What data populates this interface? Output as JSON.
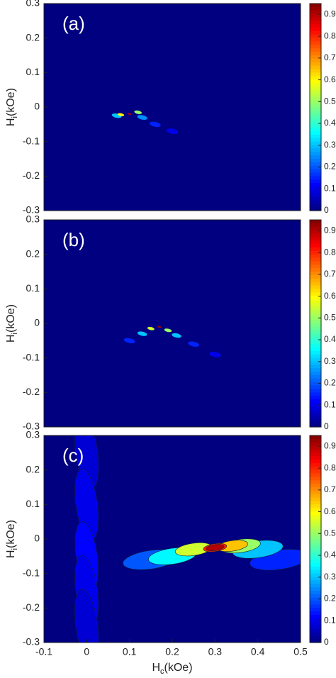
{
  "chart_data": [
    {
      "type": "heatmap",
      "label": "(a)",
      "colormap": "jet",
      "x": [
        0.2,
        0.16,
        0.13,
        0.07,
        0.12,
        0.08,
        0.1
      ],
      "y": [
        -0.07,
        -0.05,
        -0.03,
        -0.025,
        -0.015,
        -0.022,
        -0.02
      ],
      "values": [
        0.1,
        0.15,
        0.25,
        0.3,
        0.5,
        0.6,
        0.9
      ],
      "xlim": [
        -0.1,
        0.5
      ],
      "ylim": [
        -0.3,
        0.3
      ],
      "yticks": [
        0.3,
        0.2,
        0.1,
        0,
        -0.1,
        -0.2,
        -0.3
      ],
      "y_label": [
        "H",
        "i",
        "(kOe)"
      ],
      "clim": [
        0,
        0.95
      ],
      "cticks": [
        0,
        0.1,
        0.2,
        0.3,
        0.4,
        0.5,
        0.6,
        0.7,
        0.8,
        0.9
      ]
    },
    {
      "type": "heatmap",
      "label": "(b)",
      "colormap": "jet",
      "x": [
        0.3,
        0.1,
        0.25,
        0.13,
        0.21,
        0.15,
        0.19,
        0.17
      ],
      "y": [
        -0.09,
        -0.05,
        -0.06,
        -0.03,
        -0.035,
        -0.015,
        -0.02,
        -0.01
      ],
      "values": [
        0.1,
        0.15,
        0.15,
        0.3,
        0.3,
        0.55,
        0.5,
        0.9
      ],
      "xlim": [
        -0.1,
        0.5
      ],
      "ylim": [
        -0.3,
        0.3
      ],
      "yticks": [
        0.3,
        0.2,
        0.1,
        0,
        -0.1,
        -0.2,
        -0.3
      ],
      "y_label": [
        "H",
        "i",
        "(kOe)"
      ],
      "clim": [
        0,
        0.95
      ],
      "cticks": [
        0,
        0.1,
        0.2,
        0.3,
        0.4,
        0.5,
        0.6,
        0.7,
        0.8,
        0.9
      ]
    },
    {
      "type": "heatmap",
      "label": "(c)",
      "colormap": "jet",
      "x": [
        0.0,
        0.0,
        0.0,
        0.0,
        0.0,
        0.45,
        0.15,
        0.4,
        0.2,
        0.36,
        0.25,
        0.34,
        0.3,
        0.3
      ],
      "y": [
        0.25,
        0.1,
        -0.05,
        -0.15,
        -0.25,
        -0.06,
        -0.06,
        -0.03,
        -0.05,
        -0.02,
        -0.03,
        -0.02,
        -0.025,
        -0.025
      ],
      "values": [
        0.08,
        0.1,
        0.12,
        0.1,
        0.08,
        0.15,
        0.2,
        0.3,
        0.35,
        0.5,
        0.55,
        0.65,
        0.8,
        0.9
      ],
      "xlim": [
        -0.1,
        0.5
      ],
      "ylim": [
        -0.3,
        0.3
      ],
      "xticks": [
        -0.1,
        0,
        0.1,
        0.2,
        0.3,
        0.4,
        0.5
      ],
      "yticks": [
        0.3,
        0.2,
        0.1,
        0,
        -0.1,
        -0.2,
        -0.3
      ],
      "x_label": [
        "H",
        "c",
        "(kOe)"
      ],
      "y_label": [
        "H",
        "i",
        "(kOe)"
      ],
      "clim": [
        0,
        0.95
      ],
      "cticks": [
        0,
        0.1,
        0.2,
        0.3,
        0.4,
        0.5,
        0.6,
        0.7,
        0.8,
        0.9
      ]
    }
  ]
}
